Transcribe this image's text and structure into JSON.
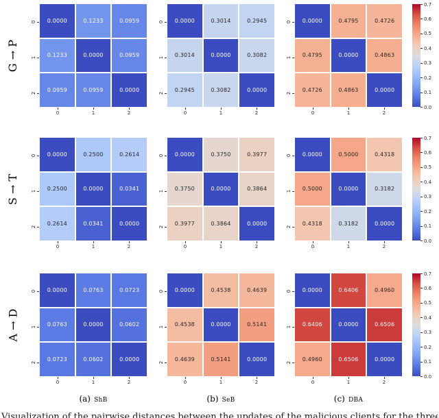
{
  "chart_data": [
    {
      "type": "heatmap",
      "scenario": "G → P",
      "attack": "ShB",
      "x_ticks": [
        "0",
        "1",
        "2"
      ],
      "y_ticks": [
        "0",
        "1",
        "2"
      ],
      "values": [
        [
          0.0,
          0.1233,
          0.0959
        ],
        [
          0.1233,
          0.0,
          0.0959
        ],
        [
          0.0959,
          0.0959,
          0.0
        ]
      ],
      "vmin": 0.0,
      "vmax": 0.7,
      "colormap": "coolwarm"
    },
    {
      "type": "heatmap",
      "scenario": "G → P",
      "attack": "SeB",
      "x_ticks": [
        "0",
        "1",
        "2"
      ],
      "y_ticks": [
        "0",
        "1",
        "2"
      ],
      "values": [
        [
          0.0,
          0.3014,
          0.2945
        ],
        [
          0.3014,
          0.0,
          0.3082
        ],
        [
          0.2945,
          0.3082,
          0.0
        ]
      ],
      "vmin": 0.0,
      "vmax": 0.7,
      "colormap": "coolwarm"
    },
    {
      "type": "heatmap",
      "scenario": "G → P",
      "attack": "DBA",
      "x_ticks": [
        "0",
        "1",
        "2"
      ],
      "y_ticks": [
        "0",
        "1",
        "2"
      ],
      "values": [
        [
          0.0,
          0.4795,
          0.4726
        ],
        [
          0.4795,
          0.0,
          0.4863
        ],
        [
          0.4726,
          0.4863,
          0.0
        ]
      ],
      "vmin": 0.0,
      "vmax": 0.7,
      "colormap": "coolwarm"
    },
    {
      "type": "heatmap",
      "scenario": "S → T",
      "attack": "ShB",
      "x_ticks": [
        "0",
        "1",
        "2"
      ],
      "y_ticks": [
        "0",
        "1",
        "2"
      ],
      "values": [
        [
          0.0,
          0.25,
          0.2614
        ],
        [
          0.25,
          0.0,
          0.0341
        ],
        [
          0.2614,
          0.0341,
          0.0
        ]
      ],
      "vmin": 0.0,
      "vmax": 0.7,
      "colormap": "coolwarm"
    },
    {
      "type": "heatmap",
      "scenario": "S → T",
      "attack": "SeB",
      "x_ticks": [
        "0",
        "1",
        "2"
      ],
      "y_ticks": [
        "0",
        "1",
        "2"
      ],
      "values": [
        [
          0.0,
          0.375,
          0.3977
        ],
        [
          0.375,
          0.0,
          0.3864
        ],
        [
          0.3977,
          0.3864,
          0.0
        ]
      ],
      "vmin": 0.0,
      "vmax": 0.7,
      "colormap": "coolwarm"
    },
    {
      "type": "heatmap",
      "scenario": "S → T",
      "attack": "DBA",
      "x_ticks": [
        "0",
        "1",
        "2"
      ],
      "y_ticks": [
        "0",
        "1",
        "2"
      ],
      "values": [
        [
          0.0,
          0.5,
          0.4318
        ],
        [
          0.5,
          0.0,
          0.3182
        ],
        [
          0.4318,
          0.3182,
          0.0
        ]
      ],
      "vmin": 0.0,
      "vmax": 0.7,
      "colormap": "coolwarm"
    },
    {
      "type": "heatmap",
      "scenario": "A → D",
      "attack": "ShB",
      "x_ticks": [
        "0",
        "1",
        "2"
      ],
      "y_ticks": [
        "0",
        "1",
        "2"
      ],
      "values": [
        [
          0.0,
          0.0763,
          0.0723
        ],
        [
          0.0763,
          0.0,
          0.0602
        ],
        [
          0.0723,
          0.0602,
          0.0
        ]
      ],
      "vmin": 0.0,
      "vmax": 0.7,
      "colormap": "coolwarm"
    },
    {
      "type": "heatmap",
      "scenario": "A → D",
      "attack": "SeB",
      "x_ticks": [
        "0",
        "1",
        "2"
      ],
      "y_ticks": [
        "0",
        "1",
        "2"
      ],
      "values": [
        [
          0.0,
          0.4538,
          0.4639
        ],
        [
          0.4538,
          0.0,
          0.5141
        ],
        [
          0.4639,
          0.5141,
          0.0
        ]
      ],
      "vmin": 0.0,
      "vmax": 0.7,
      "colormap": "coolwarm"
    },
    {
      "type": "heatmap",
      "scenario": "A → D",
      "attack": "DBA",
      "x_ticks": [
        "0",
        "1",
        "2"
      ],
      "y_ticks": [
        "0",
        "1",
        "2"
      ],
      "values": [
        [
          0.0,
          0.6406,
          0.496
        ],
        [
          0.6406,
          0.0,
          0.6506
        ],
        [
          0.496,
          0.6506,
          0.0
        ]
      ],
      "vmin": 0.0,
      "vmax": 0.7,
      "colormap": "coolwarm"
    }
  ],
  "figure": {
    "row_labels": [
      "G → P",
      "S → T",
      "A → D"
    ],
    "captions": [
      {
        "index": "(a)",
        "label": "ShB"
      },
      {
        "index": "(b)",
        "label": "SeB"
      },
      {
        "index": "(c)",
        "label": "DBA"
      }
    ],
    "colorbar": {
      "tick_labels": [
        "0.7",
        "0.6",
        "0.5",
        "0.4",
        "0.3",
        "0.2",
        "0.1",
        "0.0"
      ],
      "vmin": 0.0,
      "vmax": 0.7
    },
    "colormap_anchors": [
      "#3b4cc0",
      "#5977e3",
      "#7b9ff0",
      "#9abbff",
      "#bcd2f7",
      "#dddddd",
      "#f2cbb7",
      "#f7ac8e",
      "#ee8468",
      "#d65244",
      "#b40426"
    ],
    "annot_decimals": 4,
    "clipped_caption": "Visualization of the pairwise distances between the updates of the malicious clients for the three dataset scenarios under the ShB, SeB and DBA attacks"
  }
}
